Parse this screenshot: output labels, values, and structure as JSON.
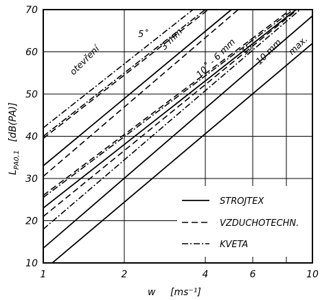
{
  "chart_data": {
    "type": "line",
    "title": "",
    "xlabel": "w",
    "xunit": "[ms⁻¹]",
    "ylabel": "L",
    "ylabel_sub": "PA0,1",
    "yunit": "[dB(PA)]",
    "xscale": "log",
    "xlim": [
      1,
      10
    ],
    "ylim": [
      10,
      70
    ],
    "x_ticks": [
      {
        "value": 1,
        "label": "1"
      },
      {
        "value": 2,
        "label": "2"
      },
      {
        "value": 4,
        "label": "4"
      },
      {
        "value": 6,
        "label": "6"
      },
      {
        "value": 10,
        "label": "10"
      }
    ],
    "y_ticks": [
      {
        "value": 10,
        "label": "10"
      },
      {
        "value": 20,
        "label": "20"
      },
      {
        "value": 30,
        "label": "30"
      },
      {
        "value": 40,
        "label": "40"
      },
      {
        "value": 50,
        "label": "50"
      },
      {
        "value": 60,
        "label": "60"
      },
      {
        "value": 70,
        "label": "70"
      }
    ],
    "x_grid": [
      1,
      2,
      4,
      6,
      8,
      10
    ],
    "y_grid": [
      10,
      20,
      30,
      40,
      50,
      60,
      70
    ],
    "grid": true,
    "legend_position": "bottom-right",
    "legend": [
      {
        "label": "STROJTEX",
        "style": "solid"
      },
      {
        "label": "VZDUCHOTECHN.",
        "style": "dashed"
      },
      {
        "label": "KVETA",
        "style": "dashdot"
      }
    ],
    "series": [
      {
        "label": "otevření",
        "style": "dashdot",
        "x": [
          1,
          3.6
        ],
        "y": [
          42,
          70
        ]
      },
      {
        "label": "5˚",
        "style": "dashdot",
        "x": [
          1,
          4.0
        ],
        "y": [
          40,
          70
        ]
      },
      {
        "label": "5˚",
        "style": "dashed",
        "x": [
          1,
          4.1
        ],
        "y": [
          39.5,
          70
        ]
      },
      {
        "label": "3 mm",
        "style": "solid",
        "x": [
          1,
          5.0
        ],
        "y": [
          33,
          70
        ]
      },
      {
        "label": "3 mm",
        "style": "dashed",
        "x": [
          1,
          5.3
        ],
        "y": [
          30.5,
          70
        ]
      },
      {
        "label": "10˚ - 6 mm",
        "style": "dashed",
        "x": [
          1,
          8.3
        ],
        "y": [
          26,
          70
        ]
      },
      {
        "label": "10˚ - 6 mm",
        "style": "dashdot",
        "x": [
          1,
          8.5
        ],
        "y": [
          25.5,
          70
        ]
      },
      {
        "label": "10˚ - 6 mm",
        "style": "solid",
        "x": [
          1,
          8.7
        ],
        "y": [
          23,
          70
        ]
      },
      {
        "label": "15˚",
        "style": "dashed",
        "x": [
          1,
          8.8
        ],
        "y": [
          21,
          70
        ]
      },
      {
        "label": "15˚",
        "style": "dashdot",
        "x": [
          1,
          9.0
        ],
        "y": [
          18,
          70
        ]
      },
      {
        "label": "10 mm",
        "style": "solid",
        "x": [
          1,
          10
        ],
        "y": [
          13.5,
          68.5
        ]
      },
      {
        "label": "max.",
        "style": "solid",
        "x": [
          1.08,
          10
        ],
        "y": [
          10,
          62
        ]
      }
    ],
    "annotations": [
      {
        "text": "otevření",
        "x": 1.45,
        "y": 57.5,
        "rotate": -45
      },
      {
        "text": "5˚",
        "x": 2.35,
        "y": 63.5,
        "rotate": 0
      },
      {
        "text": "3 mm",
        "x": 3.05,
        "y": 62.5,
        "rotate": -45
      },
      {
        "text": "10˚ - 6 mm",
        "x": 4.45,
        "y": 58.0,
        "rotate": -45
      },
      {
        "text": "15˚",
        "x": 5.9,
        "y": 60.5,
        "rotate": -45
      },
      {
        "text": "10 mm",
        "x": 7.0,
        "y": 59.5,
        "rotate": -45
      },
      {
        "text": "max.",
        "x": 9.0,
        "y": 61.0,
        "rotate": -45
      }
    ]
  }
}
